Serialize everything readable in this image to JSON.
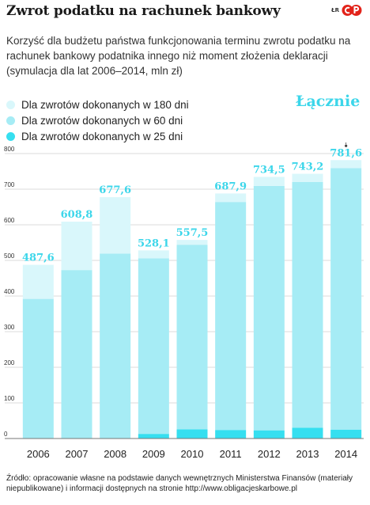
{
  "header": {
    "title": "Zwrot podatku na rachunek bankowy",
    "subtitle": "Korzyść dla budżetu państwa funkcjonowania terminu zwrotu podatku na rachunek bankowy podatnika innego niż moment złożenia deklaracji (symulacja dla lat 2006–2014, mln zł)",
    "logo_text": "ŁR",
    "logo_icon": "cp-logo-icon"
  },
  "legend": {
    "items": [
      {
        "label": "Dla zwrotów dokonanych w 180 dni",
        "color": "#d9f7fb"
      },
      {
        "label": "Dla zwrotów dokonanych w 60 dni",
        "color": "#a6ecf5"
      },
      {
        "label": "Dla zwrotów dokonanych w 25 dni",
        "color": "#36dff0"
      }
    ],
    "total_label": "Łącznie"
  },
  "chart_data": {
    "type": "bar",
    "stacked": true,
    "categories": [
      "2006",
      "2007",
      "2008",
      "2009",
      "2010",
      "2011",
      "2012",
      "2013",
      "2014"
    ],
    "series": [
      {
        "name": "Dla zwrotów dokonanych w 25 dni",
        "color": "#36dff0",
        "values": [
          0,
          0,
          0,
          13,
          26,
          24,
          23,
          30,
          25
        ]
      },
      {
        "name": "Dla zwrotów dokonanych w 60 dni",
        "color": "#a6ecf5",
        "values": [
          392,
          473,
          519,
          493,
          518,
          640,
          686,
          690,
          734
        ]
      },
      {
        "name": "Dla zwrotów dokonanych w 180 dni",
        "color": "#d9f7fb",
        "values": [
          95.6,
          135.8,
          158.6,
          22.1,
          13.5,
          23.9,
          25.5,
          23.2,
          22.6
        ]
      }
    ],
    "totals": [
      487.6,
      608.8,
      677.6,
      528.1,
      557.5,
      687.9,
      734.5,
      743.2,
      781.6
    ],
    "total_labels": [
      "487,6",
      "608,8",
      "677,6",
      "528,1",
      "557,5",
      "687,9",
      "734,5",
      "743,2",
      "781,6"
    ],
    "y_ticks": [
      0,
      100,
      200,
      300,
      400,
      500,
      600,
      700,
      800
    ],
    "ylim": [
      0,
      800
    ],
    "grid": true,
    "label_color": "#3cd6ea",
    "highlight_callout": "Łącznie"
  },
  "footer": {
    "source": "Źródło: opracowanie własne na podstawie danych wewnętrznych Ministerstwa Finansów (materiały niepublikowane) i informacji dostępnych na stronie http://www.obligacjeskarbowe.pl"
  }
}
